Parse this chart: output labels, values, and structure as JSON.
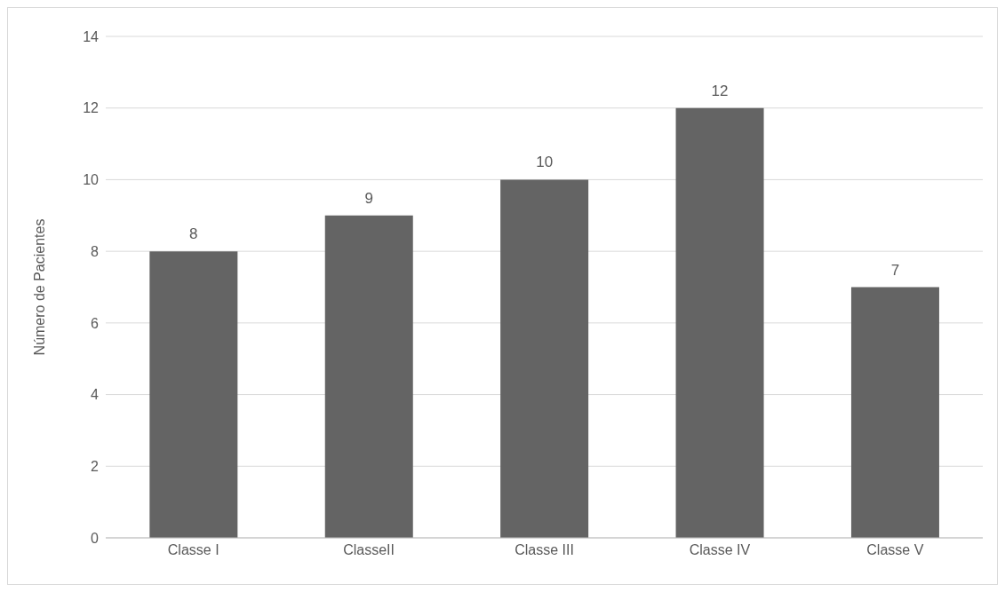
{
  "chart_data": {
    "type": "bar",
    "ylabel": "Número de Pacientes",
    "categories": [
      "Classe I",
      "ClasseII",
      "Classe III",
      "Classe IV",
      "Classe V"
    ],
    "values": [
      8,
      9,
      10,
      12,
      7
    ],
    "color": "#646464",
    "ylim": [
      0,
      14
    ],
    "yticks": [
      0,
      2,
      4,
      6,
      8,
      10,
      12,
      14
    ],
    "grid": "y",
    "data_labels": true,
    "legend": false
  }
}
